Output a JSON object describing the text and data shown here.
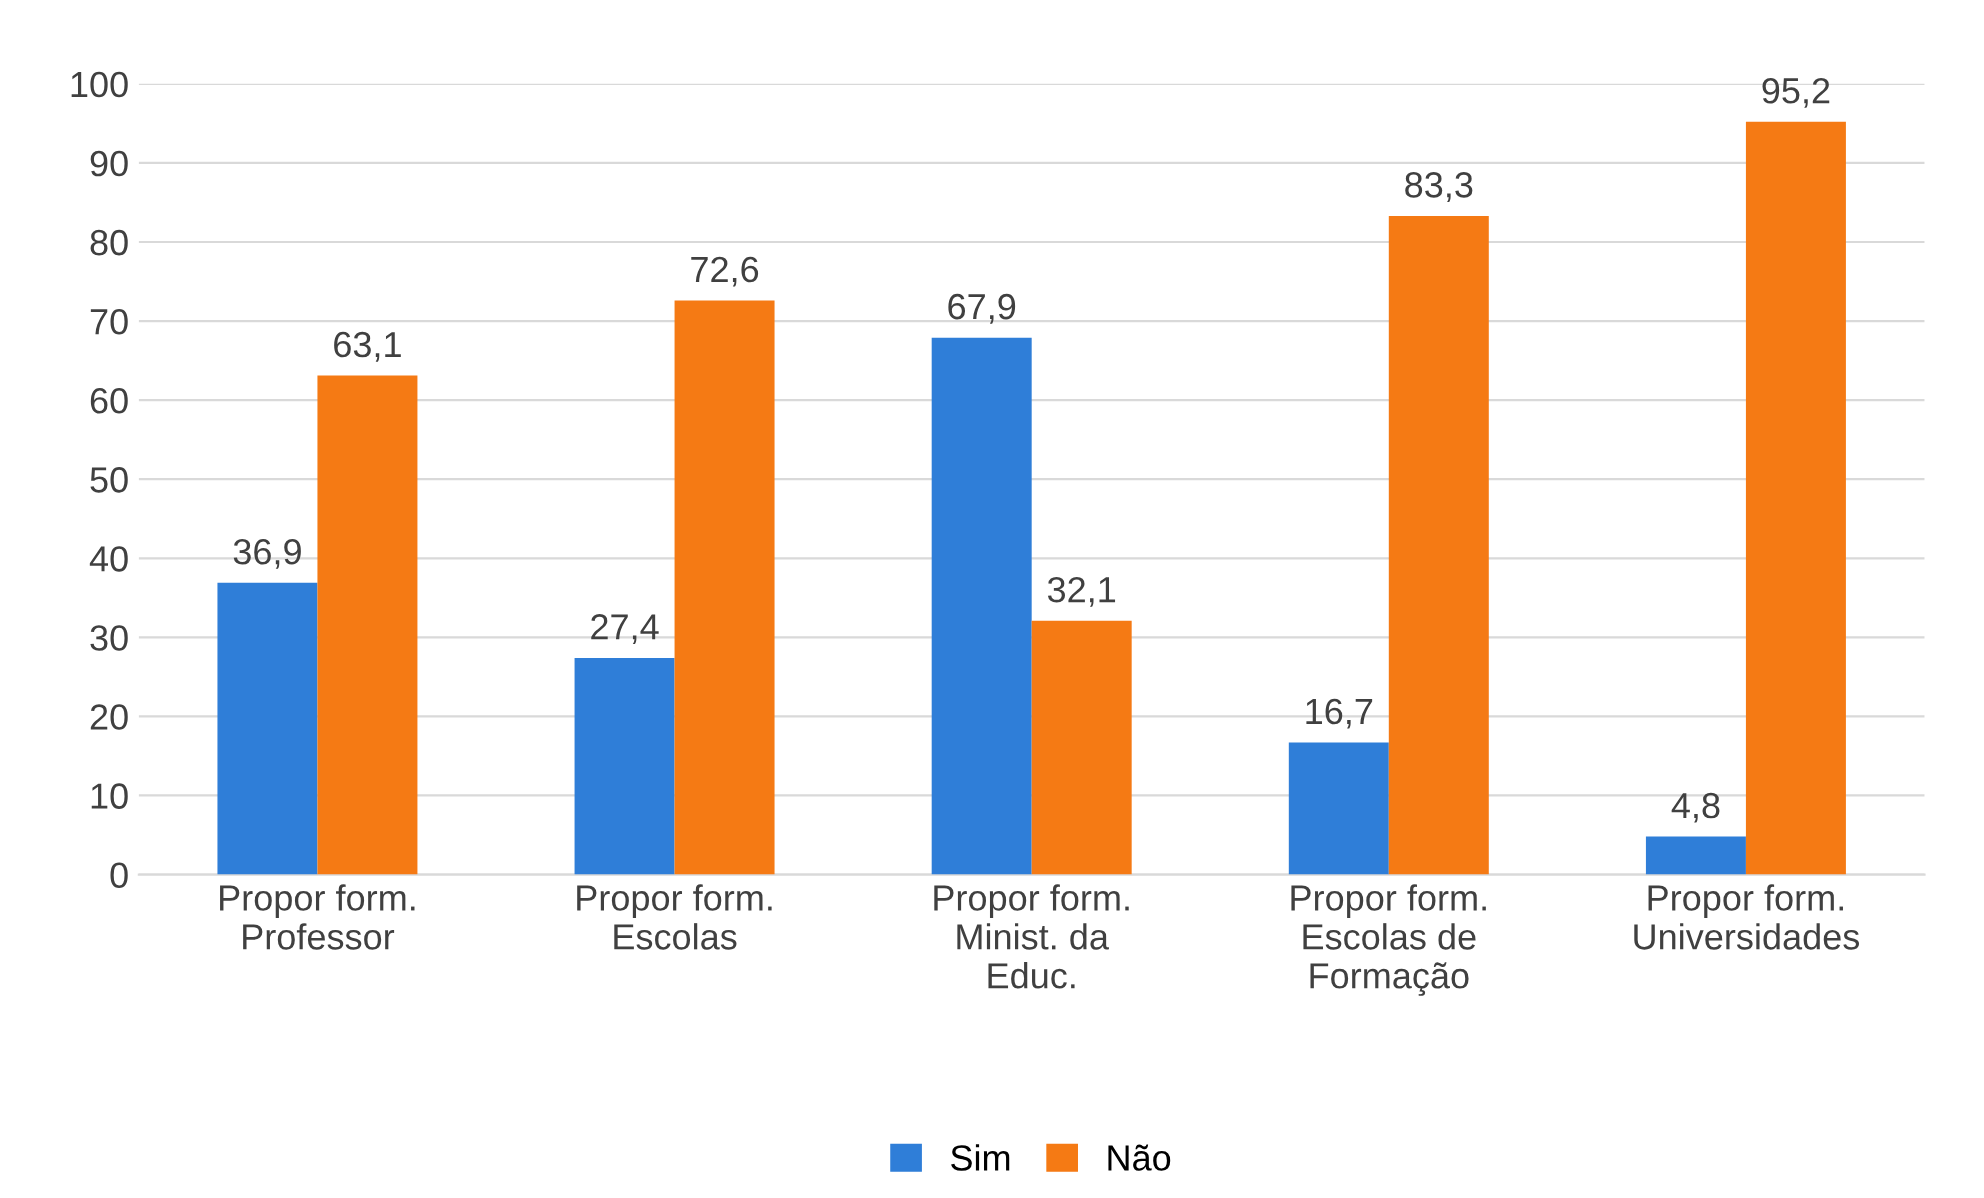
{
  "chart_data": {
    "type": "bar",
    "categories": [
      "Propor form. Professor",
      "Propor form. Escolas",
      "Propor form. Minist. da Educ.",
      "Propor form. Escolas de Formação",
      "Propor form. Universidades"
    ],
    "series": [
      {
        "name": "Sim",
        "color": "#2f7ed8",
        "values": [
          36.9,
          27.4,
          67.9,
          16.7,
          4.8
        ],
        "value_labels": [
          "36,9",
          "27,4",
          "67,9",
          "16,7",
          "4,8"
        ]
      },
      {
        "name": "Não",
        "color": "#f57a14",
        "values": [
          63.1,
          72.6,
          32.1,
          83.3,
          95.2
        ],
        "value_labels": [
          "63,1",
          "72,6",
          "32,1",
          "83,3",
          "95,2"
        ]
      }
    ],
    "ylim": [
      0,
      100
    ],
    "yticks": [
      0,
      10,
      20,
      30,
      40,
      50,
      60,
      70,
      80,
      90,
      100
    ],
    "grid": "y",
    "legend": "bottom"
  }
}
